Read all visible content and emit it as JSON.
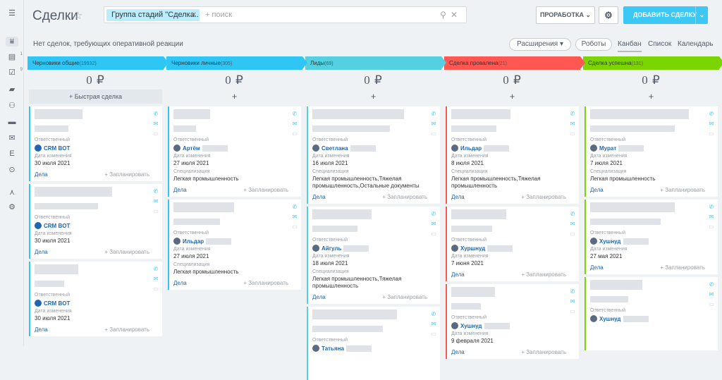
{
  "header": {
    "title": "Сделки",
    "filter_chip": "Группа стадий \"Сделка...",
    "search_placeholder": "+ поиск",
    "robot_btn": "ПРОРАБОТКА",
    "add_btn": "ДОБАВИТЬ СДЕЛКУ"
  },
  "subbar": {
    "no_deals": "Нет сделок, требующих оперативной реакции",
    "extensions": "Расширения",
    "robots": "Роботы",
    "views": [
      "Канбан",
      "Список",
      "Календарь"
    ]
  },
  "labels": {
    "resp": "Ответственный",
    "date": "Дата изменения",
    "spec": "Специализация",
    "deals": "Дела",
    "plan": "+ Запланировать",
    "quick": "+ Быстрая сделка",
    "plus": "+"
  },
  "sidebar_badges": [
    "1",
    "9"
  ],
  "columns": [
    {
      "name": "Черновики общие",
      "count": "(19932)",
      "sum": "0 ₽",
      "color": "#2fc6f6",
      "quick": true,
      "cards": [
        {
          "resp": "CRM BOT",
          "date": "30 июля 2021"
        },
        {
          "resp": "CRM BOT",
          "date": "30 июля 2021"
        },
        {
          "resp": "CRM BOT",
          "date": "30 июля 2021"
        }
      ]
    },
    {
      "name": "Черновики личные",
      "count": "(305)",
      "sum": "0 ₽",
      "color": "#2fc6f6",
      "cards": [
        {
          "resp": "Артём",
          "date": "27 июля 2021",
          "spec": "Легкая промышленность"
        },
        {
          "resp": "Ильдар",
          "date": "27 июля 2021",
          "spec": "Легкая промышленность"
        }
      ]
    },
    {
      "name": "Лиды",
      "count": "(69)",
      "sum": "0 ₽",
      "color": "#55d0e0",
      "cards": [
        {
          "resp": "Светлана",
          "date": "16 июля 2021",
          "spec": "Легкая промышленность,Тяжелая промышленность,Остальные документы"
        },
        {
          "resp": "Айгуль",
          "date": "18 июля 2021",
          "spec": "Легкая промышленность,Тяжелая промышленность"
        },
        {
          "resp": "Татьяна"
        }
      ]
    },
    {
      "name": "Сделка провалена",
      "count": "(21)",
      "sum": "0 ₽",
      "color": "#ff5752",
      "cards": [
        {
          "resp": "Ильдар",
          "date": "8 июля 2021",
          "spec": "Легкая промышленность,Тяжелая промышленность"
        },
        {
          "resp": "Хуршнуд",
          "date": "7 июня 2021"
        },
        {
          "resp": "Хушнуд",
          "date": "9 февраля 2021"
        }
      ]
    },
    {
      "name": "Сделка успешна",
      "count": "(131)",
      "sum": "0 ₽",
      "color": "#7bd500",
      "cards": [
        {
          "resp": "Мурат",
          "date": "7 июля 2021",
          "spec": "Легкая промышленность"
        },
        {
          "resp": "Хушнуд",
          "date": "27 мая 2021"
        },
        {
          "resp": "Хушнуд"
        }
      ]
    }
  ]
}
